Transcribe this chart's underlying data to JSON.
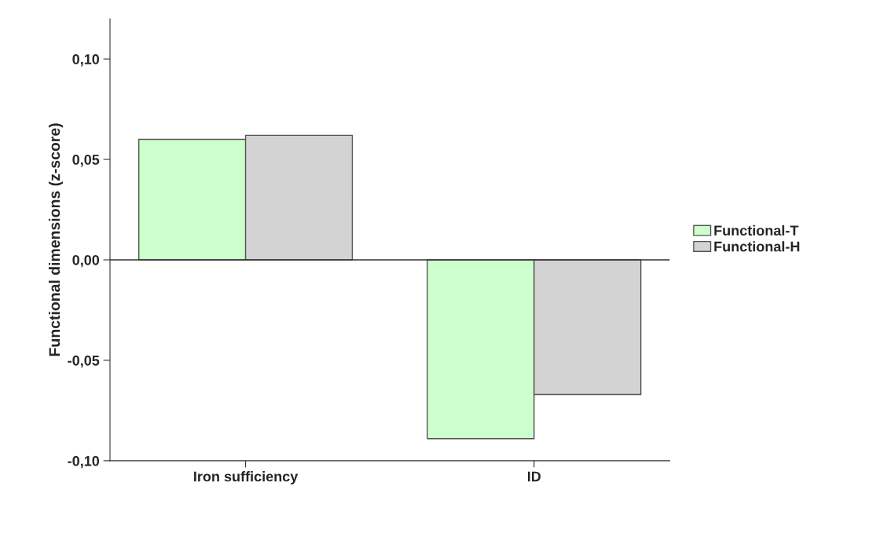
{
  "chart_data": {
    "type": "bar",
    "ylabel": "Functional dimensions (z-score)",
    "categories": [
      "Iron sufficiency",
      "ID"
    ],
    "series": [
      {
        "name": "Functional-T",
        "color": "#ccffcc",
        "values": [
          0.06,
          -0.089
        ]
      },
      {
        "name": "Functional-H",
        "color": "#d3d3d3",
        "values": [
          0.062,
          -0.067
        ]
      }
    ],
    "ylim": [
      -0.1,
      0.12
    ],
    "yticks": [
      {
        "value": -0.1,
        "label": "-0,10"
      },
      {
        "value": -0.05,
        "label": "-0,05"
      },
      {
        "value": 0,
        "label": "0,00"
      },
      {
        "value": 0.05,
        "label": "0,05"
      },
      {
        "value": 0.1,
        "label": "0,10"
      }
    ],
    "ref_lines": [
      {
        "axis": "y",
        "value": 0,
        "color": "#333333"
      }
    ],
    "grid": false,
    "legend": "right"
  }
}
